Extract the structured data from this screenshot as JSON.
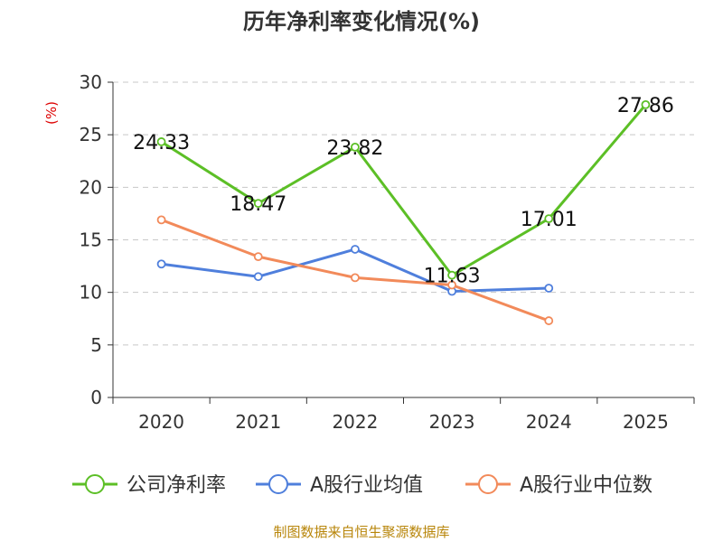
{
  "chart_data": {
    "type": "line",
    "title": "历年净利率变化情况(%)",
    "ylabel": "(%)",
    "xlabel": "",
    "categories": [
      "2020",
      "2021",
      "2022",
      "2023",
      "2024",
      "2025"
    ],
    "ylim": [
      0,
      30
    ],
    "yticks": [
      0,
      5,
      10,
      15,
      20,
      25,
      30
    ],
    "grid": true,
    "legend_position": "bottom",
    "series": [
      {
        "name": "公司净利率",
        "color": "#5cbf26",
        "values": [
          24.33,
          18.47,
          23.82,
          11.63,
          17.01,
          27.86
        ],
        "labels": [
          "24.33",
          "18.47",
          "23.82",
          "11.63",
          "17.01",
          "27.86"
        ]
      },
      {
        "name": "A股行业均值",
        "color": "#4f7fdc",
        "values": [
          12.7,
          11.5,
          14.1,
          10.1,
          10.4,
          null
        ]
      },
      {
        "name": "A股行业中位数",
        "color": "#f28a5a",
        "values": [
          16.9,
          13.4,
          11.4,
          10.7,
          7.3,
          null
        ]
      }
    ]
  },
  "source": "制图数据来自恒生聚源数据库"
}
